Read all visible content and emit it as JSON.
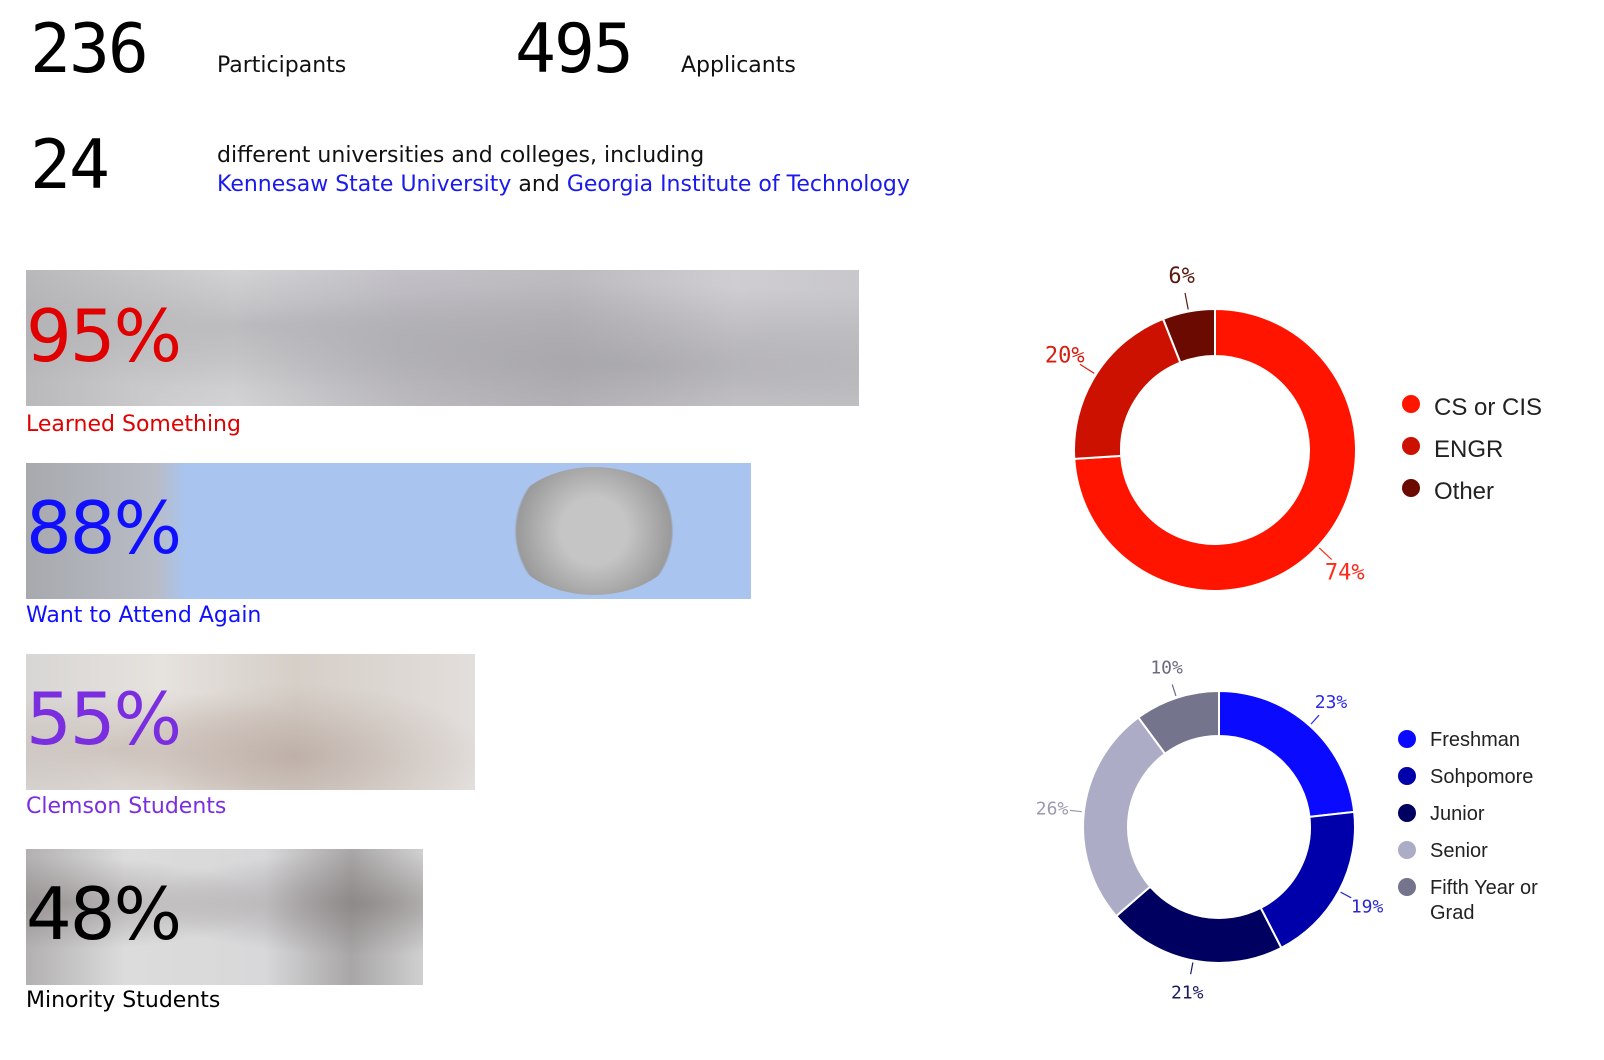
{
  "stats": {
    "participants": {
      "value": "236",
      "label": "Participants"
    },
    "applicants": {
      "value": "495",
      "label": "Applicants"
    },
    "universities": {
      "value": "24",
      "line1": "different universities and colleges, including",
      "link1": "Kennesaw State University",
      "conj": "and",
      "link2": "Georgia Institute of Technology"
    }
  },
  "highlights": [
    {
      "value": "95%",
      "label": "Learned Something",
      "color": "#e00000",
      "bar_fill": 0.95
    },
    {
      "value": "88%",
      "label": "Want to Attend Again",
      "color": "#1010ff",
      "bar_fill": 0.88
    },
    {
      "value": "55%",
      "label": "Clemson Students",
      "color": "#7a2ee0",
      "bar_fill": 0.55
    },
    {
      "value": "48%",
      "label": "Minority Students",
      "color": "#000000",
      "bar_fill": 0.48
    }
  ],
  "chart_data": [
    {
      "type": "pie",
      "donut": true,
      "categories": [
        "CS or CIS",
        "ENGR",
        "Other"
      ],
      "values": [
        74,
        20,
        6
      ],
      "value_labels": [
        "74%",
        "20%",
        "6%"
      ],
      "colors": [
        "#ff1400",
        "#cc1100",
        "#6b0a00"
      ],
      "label_colors": [
        "#ff2a1a",
        "#d81e10",
        "#5a1a10"
      ],
      "legend": "right"
    },
    {
      "type": "pie",
      "donut": true,
      "categories": [
        "Freshman",
        "Sohpomore",
        "Junior",
        "Senior",
        "Fifth Year or Grad"
      ],
      "values": [
        23,
        19,
        21,
        26,
        10
      ],
      "value_labels": [
        "23%",
        "19%",
        "21%",
        "26%",
        "10%"
      ],
      "colors": [
        "#0a0aff",
        "#0000aa",
        "#000060",
        "#acacc6",
        "#74748c"
      ],
      "label_colors": [
        "#2a2af0",
        "#2a2ad0",
        "#1a1a60",
        "#9a9ab0",
        "#6a6a80"
      ],
      "legend": "right"
    }
  ]
}
